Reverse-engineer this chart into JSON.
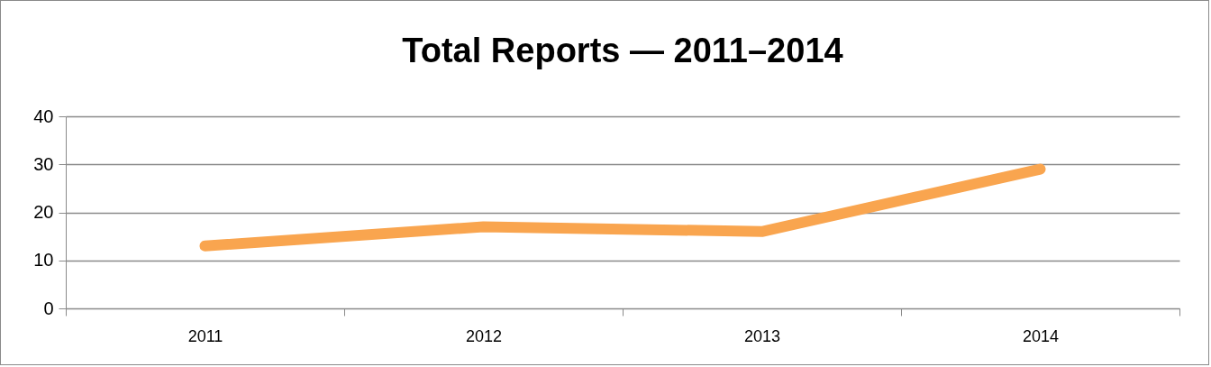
{
  "chart_data": {
    "type": "line",
    "title": "Total Reports — 2011–2014",
    "categories": [
      "2011",
      "2012",
      "2013",
      "2014"
    ],
    "values": [
      13,
      17,
      16,
      29
    ],
    "color": "#f9a54f",
    "ylim": [
      0,
      40
    ],
    "yticks": [
      0,
      10,
      20,
      30,
      40
    ],
    "grid": "y"
  }
}
